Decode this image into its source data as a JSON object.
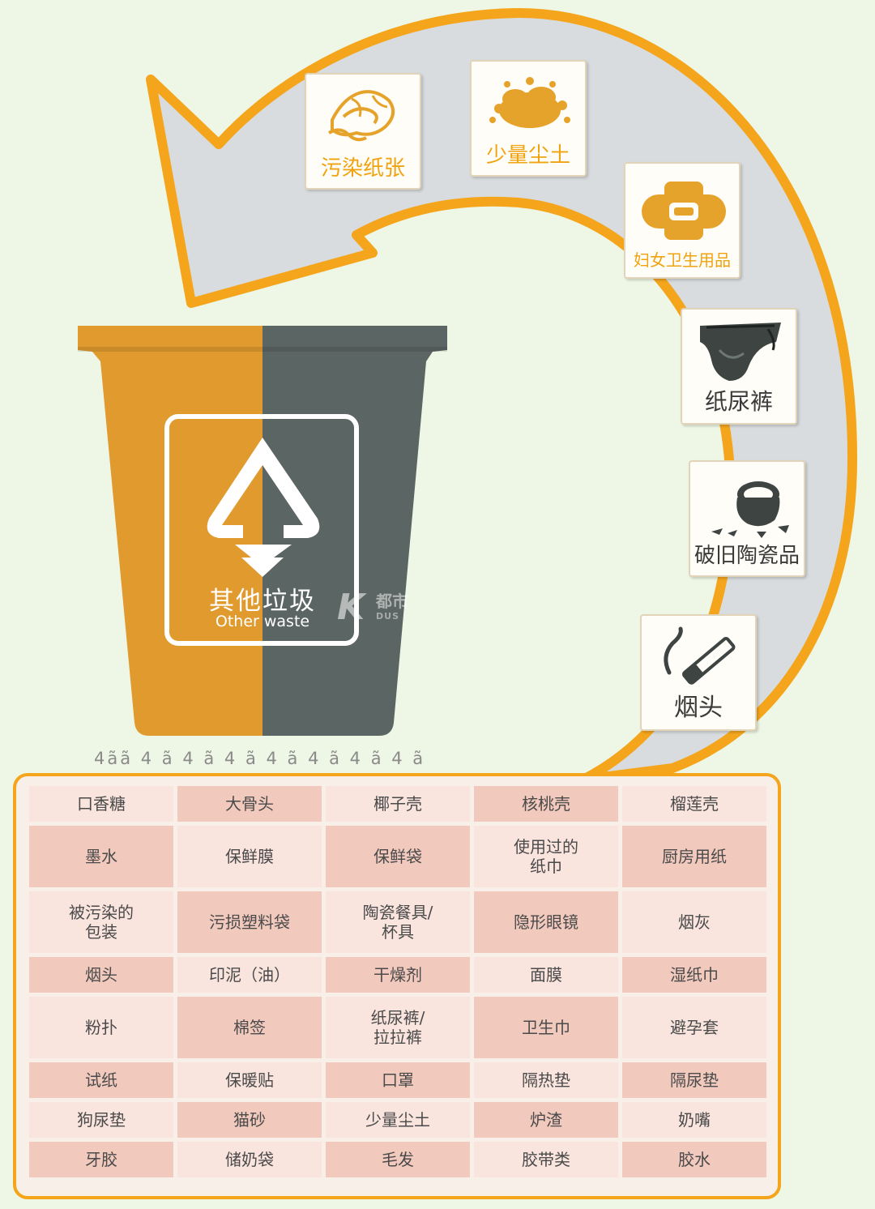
{
  "cards": [
    {
      "id": "contaminated-paper",
      "label": "污染纸张",
      "icon": "crumpled-paper-icon"
    },
    {
      "id": "small-dust",
      "label": "少量尘土",
      "icon": "dust-pile-icon"
    },
    {
      "id": "sanitary-products",
      "label": "妇女卫生用品",
      "icon": "sanitary-pad-icon"
    },
    {
      "id": "diapers",
      "label": "纸尿裤",
      "icon": "diaper-icon"
    },
    {
      "id": "broken-ceramics",
      "label": "破旧陶瓷品",
      "icon": "broken-ceramic-icon"
    },
    {
      "id": "cigarette-butts",
      "label": "烟头",
      "icon": "cigarette-icon"
    }
  ],
  "bin": {
    "title": "其他垃圾",
    "subtitle": "Other waste",
    "icon": "recycle-triangle-icon"
  },
  "watermark": {
    "text": "都市",
    "sub": "DUS"
  },
  "glitch_text": "4ãã 4 ã 4 ã 4 ã 4 ã 4 ã 4 ã 4 ã",
  "items": [
    [
      "口香糖",
      "大骨头",
      "椰子壳",
      "核桃壳",
      "榴莲壳"
    ],
    [
      "墨水",
      "保鲜膜",
      "保鲜袋",
      "使用过的\n纸巾",
      "厨房用纸"
    ],
    [
      "被污染的\n包装",
      "污损塑料袋",
      "陶瓷餐具/\n杯具",
      "隐形眼镜",
      "烟灰"
    ],
    [
      "烟头",
      "印泥（油）",
      "干燥剂",
      "面膜",
      "湿纸巾"
    ],
    [
      "粉扑",
      "棉签",
      "纸尿裤/\n拉拉裤",
      "卫生巾",
      "避孕套"
    ],
    [
      "试纸",
      "保暖贴",
      "口罩",
      "隔热垫",
      "隔尿垫"
    ],
    [
      "狗尿垫",
      "猫砂",
      "少量尘土",
      "炉渣",
      "奶嘴"
    ],
    [
      "牙胶",
      "储奶袋",
      "毛发",
      "胶带类",
      "胶水"
    ]
  ],
  "colors": {
    "orange": "#e09a2e",
    "dark_gray": "#5b6563",
    "accent": "#f4a51c",
    "arrow_fill": "#d8dcde"
  }
}
